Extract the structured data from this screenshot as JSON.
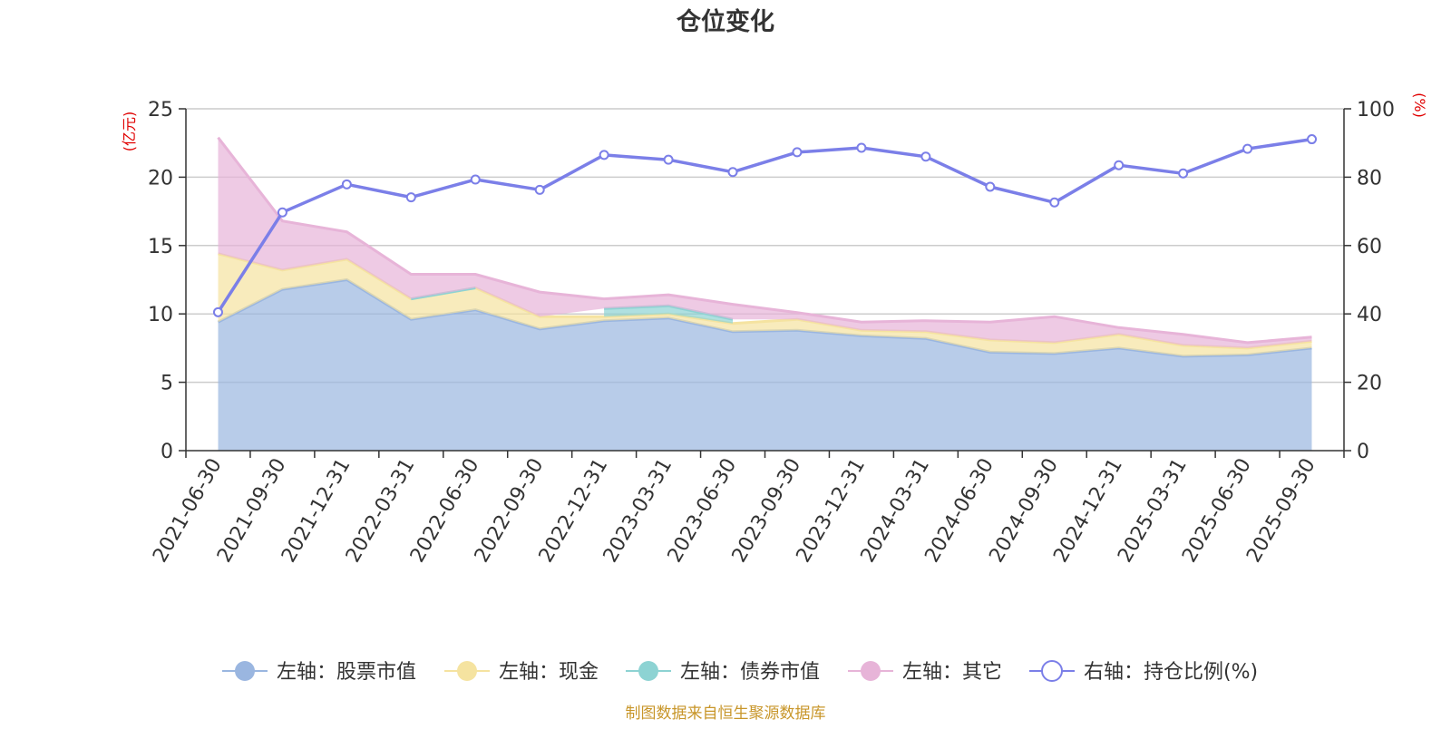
{
  "chart_data": {
    "type": "area",
    "title": "仓位变化",
    "source": "制图数据来自恒生聚源数据库",
    "left_axis": {
      "label": "(亿元)",
      "ylim": [
        0,
        25
      ],
      "ticks": [
        0,
        5,
        10,
        15,
        20,
        25
      ]
    },
    "right_axis": {
      "label": "(%)",
      "ylim": [
        0,
        100
      ],
      "ticks": [
        0,
        20,
        40,
        60,
        80,
        100
      ]
    },
    "categories": [
      "2021-06-30",
      "2021-09-30",
      "2021-12-31",
      "2022-03-31",
      "2022-06-30",
      "2022-09-30",
      "2022-12-31",
      "2023-03-31",
      "2023-06-30",
      "2023-09-30",
      "2023-12-31",
      "2024-03-31",
      "2024-06-30",
      "2024-09-30",
      "2024-12-31",
      "2025-03-31",
      "2025-06-30",
      "2025-09-30"
    ],
    "series": [
      {
        "name": "左轴：股票市值",
        "axis": "left",
        "kind": "area",
        "color": "#9ab6e0",
        "values": [
          9.4,
          11.8,
          12.5,
          9.6,
          10.3,
          8.9,
          9.5,
          9.7,
          8.7,
          8.8,
          8.4,
          8.2,
          7.2,
          7.1,
          7.5,
          6.9,
          7.0,
          7.5
        ]
      },
      {
        "name": "左轴：现金",
        "axis": "left",
        "kind": "area",
        "color": "#f5e3a0",
        "values": [
          5.0,
          1.4,
          1.5,
          1.5,
          1.6,
          0.9,
          0.3,
          0.3,
          0.6,
          0.8,
          0.4,
          0.5,
          0.9,
          0.8,
          1.0,
          0.8,
          0.5,
          0.5
        ]
      },
      {
        "name": "左轴：债券市值",
        "axis": "left",
        "kind": "area",
        "color": "#8dd3d3",
        "values": [
          null,
          null,
          null,
          0.0,
          0.0,
          null,
          0.6,
          0.6,
          0.3,
          null,
          null,
          null,
          null,
          null,
          null,
          null,
          null,
          null
        ]
      },
      {
        "name": "左轴：其它",
        "axis": "left",
        "kind": "area",
        "color": "#e7b4d8",
        "values": [
          8.5,
          3.6,
          2.0,
          1.8,
          1.0,
          1.8,
          0.7,
          0.8,
          1.1,
          0.5,
          0.6,
          0.8,
          1.3,
          1.9,
          0.5,
          0.8,
          0.4,
          0.3
        ]
      },
      {
        "name": "右轴：持仓比例(%)",
        "axis": "right",
        "kind": "line",
        "color": "#7b7fe8",
        "values": [
          40.5,
          69.7,
          77.9,
          74.1,
          79.3,
          76.3,
          86.5,
          85.1,
          81.5,
          87.3,
          88.6,
          86.0,
          77.2,
          72.6,
          83.5,
          81.1,
          88.3,
          91.1
        ]
      }
    ]
  }
}
